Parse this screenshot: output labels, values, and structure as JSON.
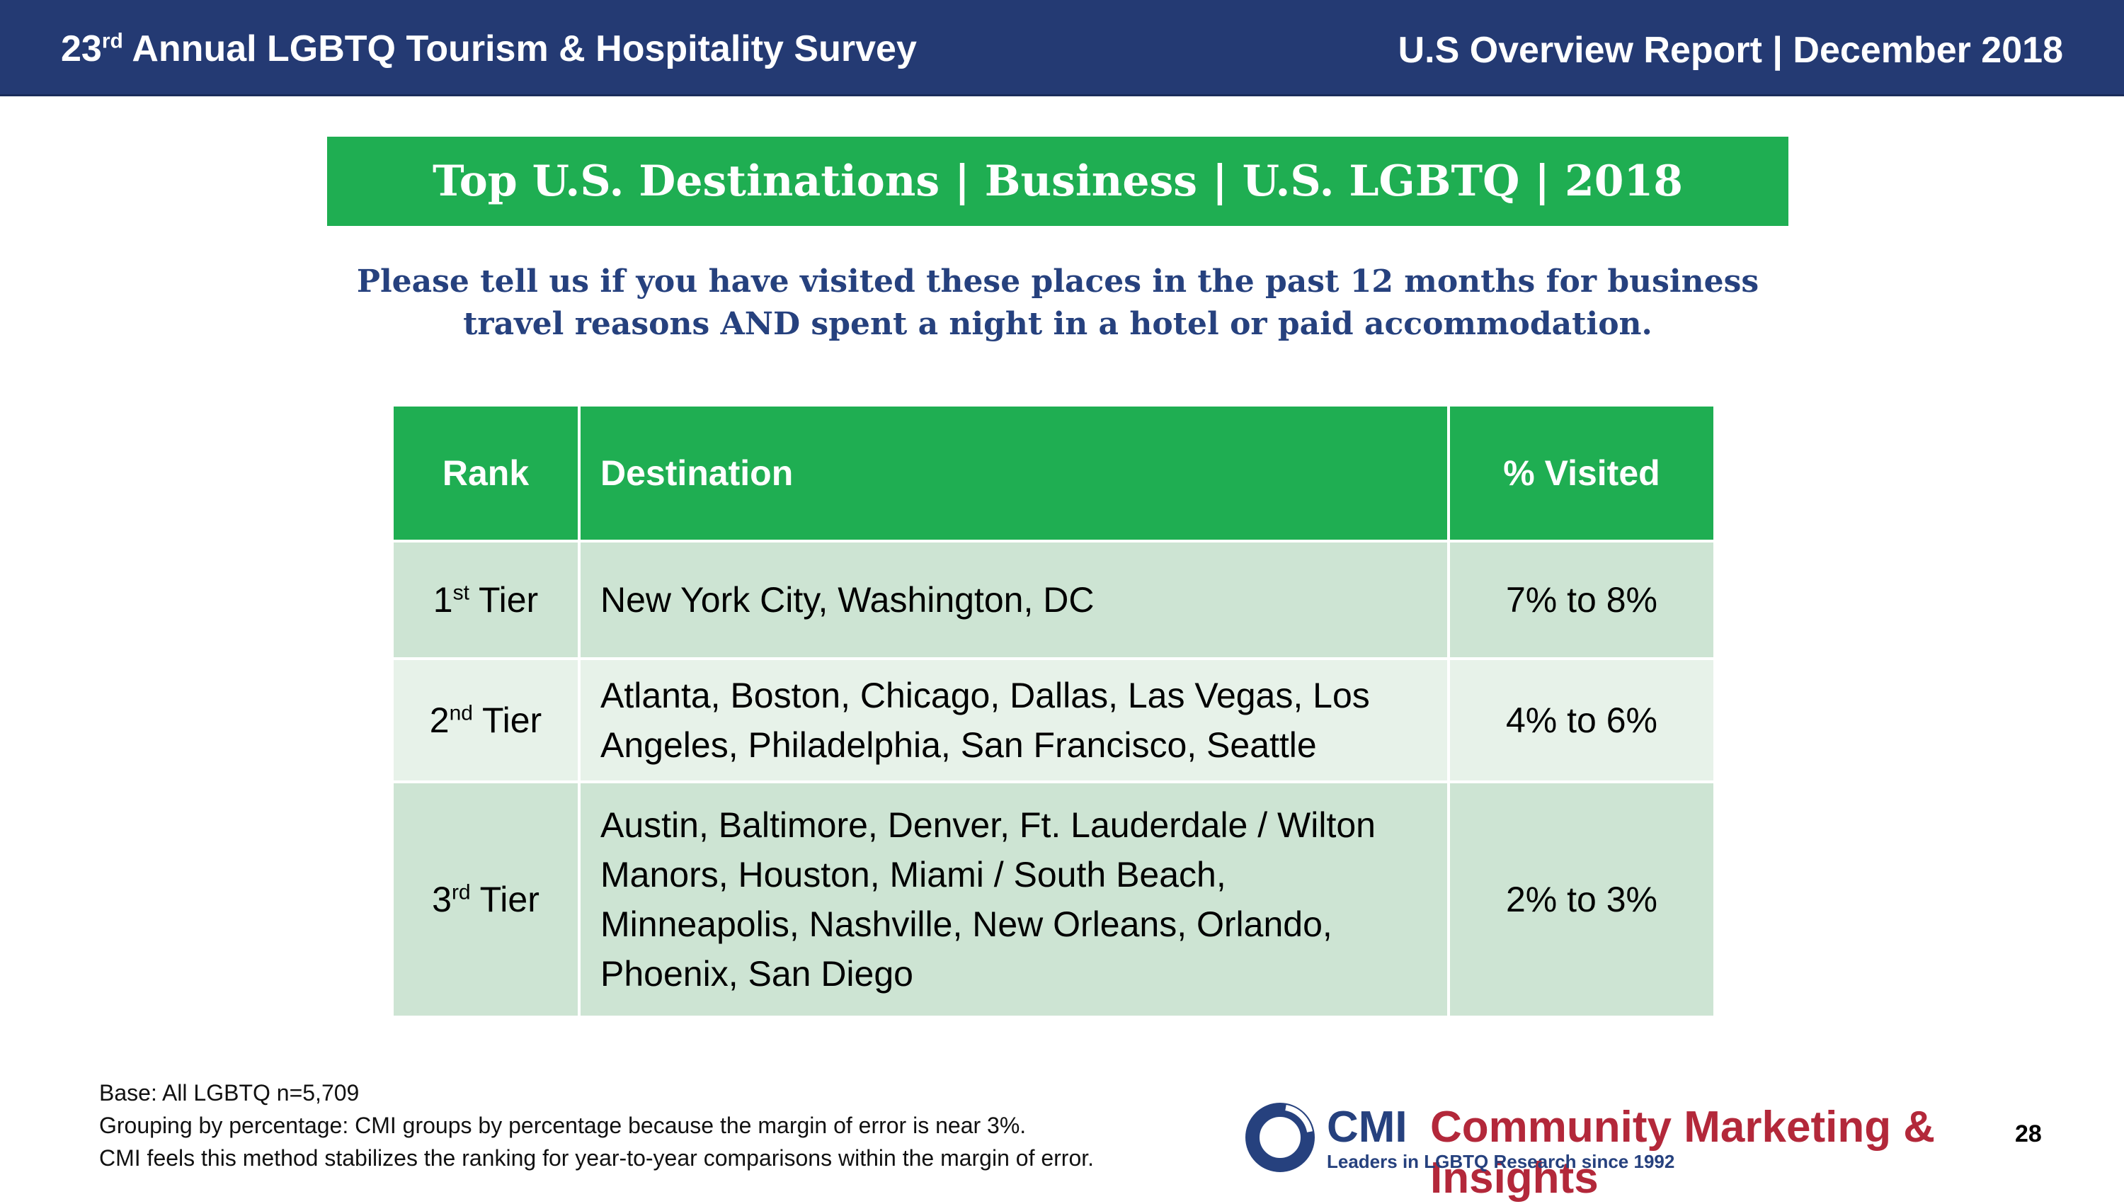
{
  "header": {
    "survey_ordinal": "23",
    "survey_ordinal_suffix": "rd",
    "survey_title": " Annual LGBTQ Tourism & Hospitality Survey",
    "report_label": "U.S Overview Report | December 2018"
  },
  "title": "Top U.S. Destinations | Business | U.S. LGBTQ | 2018",
  "question": "Please tell us if you have visited these places in the past 12 months for business travel reasons AND spent a night in a hotel or paid accommodation.",
  "table": {
    "columns": [
      "Rank",
      "Destination",
      "% Visited"
    ],
    "rows": [
      {
        "rank_num": "1",
        "rank_suffix": "st",
        "rank_word": " Tier",
        "destination": "New York City, Washington, DC",
        "visited": "7% to 8%"
      },
      {
        "rank_num": "2",
        "rank_suffix": "nd",
        "rank_word": " Tier",
        "destination": "Atlanta, Boston, Chicago, Dallas, Las Vegas, Los Angeles, Philadelphia, San Francisco, Seattle",
        "visited": "4% to 6%"
      },
      {
        "rank_num": "3",
        "rank_suffix": "rd",
        "rank_word": " Tier",
        "destination": "Austin, Baltimore, Denver, Ft. Lauderdale / Wilton Manors, Houston, Miami / South Beach, Minneapolis, Nashville, New Orleans, Orlando, Phoenix, San Diego",
        "visited": "2% to 3%"
      }
    ]
  },
  "footnote": {
    "line1": "Base: All LGBTQ n=5,709",
    "line2": "Grouping by percentage: CMI groups by percentage because the margin of error is near 3%.",
    "line3": "CMI feels this method stabilizes the ranking for year-to-year comparisons within the margin of error."
  },
  "logo": {
    "abbr": "CMI",
    "name": "Community Marketing & Insights",
    "tagline": "Leaders in LGBTQ Research since 1992"
  },
  "page_number": "28",
  "colors": {
    "header_bg": "#243a73",
    "accent_green": "#1fae52",
    "row_dark": "#cde4d3",
    "row_light": "#e7f2e9",
    "navy_text": "#26417e",
    "brand_red": "#b3283a"
  }
}
